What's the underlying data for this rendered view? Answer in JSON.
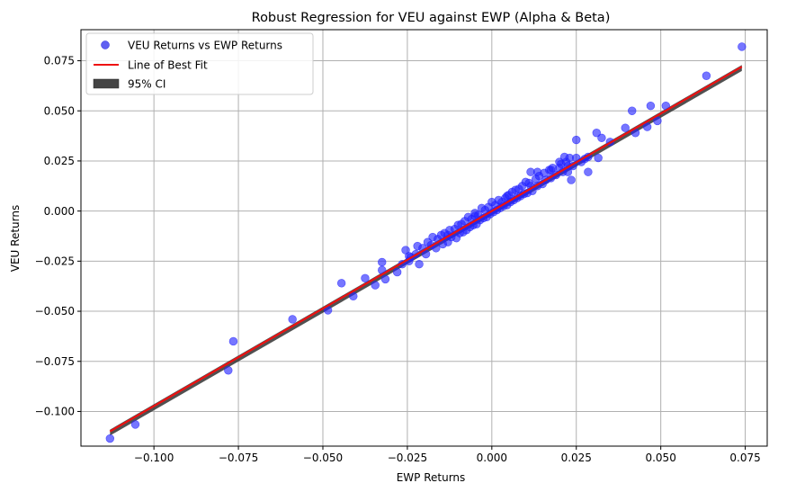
{
  "chart_data": {
    "type": "scatter",
    "title": "Robust Regression for VEU against EWP (Alpha & Beta)",
    "xlabel": "EWP Returns",
    "ylabel": "VEU Returns",
    "xlim": [
      -0.1216,
      0.0815
    ],
    "ylim": [
      -0.1173,
      0.0905
    ],
    "xticks": [
      -0.1,
      -0.075,
      -0.05,
      -0.025,
      0.0,
      0.025,
      0.05,
      0.075
    ],
    "yticks": [
      -0.1,
      -0.075,
      -0.05,
      -0.025,
      0.0,
      0.025,
      0.05,
      0.075
    ],
    "xtick_labels": [
      "−0.100",
      "−0.075",
      "−0.050",
      "−0.025",
      "0.000",
      "0.025",
      "0.050",
      "0.075"
    ],
    "ytick_labels": [
      "−0.100",
      "−0.075",
      "−0.050",
      "−0.025",
      "0.000",
      "0.025",
      "0.050",
      "0.075"
    ],
    "grid": true,
    "legend_position": "top-left",
    "legend": [
      {
        "label": "VEU Returns vs EWP Returns",
        "kind": "marker",
        "color": "#4444ee"
      },
      {
        "label": "Line of Best Fit",
        "kind": "line",
        "color": "#ee1111"
      },
      {
        "label": "95% CI",
        "kind": "patch",
        "color": "#444444"
      }
    ],
    "colors": {
      "points": "#2222ff",
      "fit_line": "#ee1111",
      "ci_band": "#333333",
      "grid": "#b0b0b0"
    },
    "fit": {
      "intercept": 0.0,
      "slope": 0.973,
      "x_range": [
        -0.113,
        0.074
      ],
      "ci_halfwidth": 0.0009
    },
    "series": [
      {
        "name": "VEU Returns vs EWP Returns",
        "points": [
          [
            -0.113,
            -0.1135
          ],
          [
            -0.1055,
            -0.1065
          ],
          [
            -0.078,
            -0.0795
          ],
          [
            -0.0765,
            -0.065
          ],
          [
            -0.059,
            -0.054
          ],
          [
            -0.0485,
            -0.0495
          ],
          [
            -0.0445,
            -0.036
          ],
          [
            -0.041,
            -0.0425
          ],
          [
            -0.0375,
            -0.0335
          ],
          [
            -0.0345,
            -0.037
          ],
          [
            -0.0325,
            -0.0255
          ],
          [
            -0.0325,
            -0.0295
          ],
          [
            -0.0315,
            -0.034
          ],
          [
            -0.028,
            -0.0305
          ],
          [
            -0.0265,
            -0.0265
          ],
          [
            -0.0255,
            -0.0195
          ],
          [
            -0.0245,
            -0.025
          ],
          [
            -0.024,
            -0.023
          ],
          [
            -0.0225,
            -0.0215
          ],
          [
            -0.0215,
            -0.0265
          ],
          [
            -0.0205,
            -0.0185
          ],
          [
            -0.0195,
            -0.0215
          ],
          [
            -0.019,
            -0.0155
          ],
          [
            -0.018,
            -0.017
          ],
          [
            -0.0175,
            -0.013
          ],
          [
            -0.0165,
            -0.0185
          ],
          [
            -0.016,
            -0.014
          ],
          [
            -0.015,
            -0.012
          ],
          [
            -0.0145,
            -0.0165
          ],
          [
            -0.014,
            -0.011
          ],
          [
            -0.013,
            -0.0155
          ],
          [
            -0.0125,
            -0.0095
          ],
          [
            -0.012,
            -0.013
          ],
          [
            -0.011,
            -0.009
          ],
          [
            -0.0105,
            -0.0135
          ],
          [
            -0.01,
            -0.007
          ],
          [
            -0.0095,
            -0.011
          ],
          [
            -0.009,
            -0.0065
          ],
          [
            -0.0085,
            -0.0105
          ],
          [
            -0.008,
            -0.005
          ],
          [
            -0.0075,
            -0.0095
          ],
          [
            -0.007,
            -0.003
          ],
          [
            -0.0065,
            -0.008
          ],
          [
            -0.006,
            -0.004
          ],
          [
            -0.0055,
            -0.007
          ],
          [
            -0.005,
            -0.001
          ],
          [
            -0.0045,
            -0.0065
          ],
          [
            -0.004,
            -0.002
          ],
          [
            -0.0035,
            -0.0045
          ],
          [
            -0.003,
            0.0015
          ],
          [
            -0.0025,
            -0.0035
          ],
          [
            -0.002,
            0.0005
          ],
          [
            -0.0015,
            -0.003
          ],
          [
            -0.001,
            0.002
          ],
          [
            -0.0005,
            -0.0015
          ],
          [
            0.0,
            0.0045
          ],
          [
            0.0005,
            -0.0005
          ],
          [
            0.001,
            0.003
          ],
          [
            0.0015,
            0.0005
          ],
          [
            0.002,
            0.0055
          ],
          [
            0.0025,
            0.0015
          ],
          [
            0.003,
            0.0045
          ],
          [
            0.0035,
            0.0025
          ],
          [
            0.004,
            0.0065
          ],
          [
            0.0045,
            0.003
          ],
          [
            0.005,
            0.008
          ],
          [
            0.0055,
            0.0045
          ],
          [
            0.006,
            0.0095
          ],
          [
            0.0065,
            0.0055
          ],
          [
            0.007,
            0.0105
          ],
          [
            0.0075,
            0.0065
          ],
          [
            0.008,
            0.011
          ],
          [
            0.0085,
            0.0075
          ],
          [
            0.009,
            0.0125
          ],
          [
            0.0095,
            0.0085
          ],
          [
            0.01,
            0.0145
          ],
          [
            0.0105,
            0.009
          ],
          [
            0.011,
            0.014
          ],
          [
            0.0115,
            0.0195
          ],
          [
            0.012,
            0.01
          ],
          [
            0.013,
            0.016
          ],
          [
            0.0135,
            0.0125
          ],
          [
            0.014,
            0.0175
          ],
          [
            0.015,
            0.0135
          ],
          [
            0.0155,
            0.019
          ],
          [
            0.016,
            0.0155
          ],
          [
            0.017,
            0.0205
          ],
          [
            0.0175,
            0.0165
          ],
          [
            0.018,
            0.0215
          ],
          [
            0.019,
            0.018
          ],
          [
            0.02,
            0.0215
          ],
          [
            0.0205,
            0.0235
          ],
          [
            0.021,
            0.0195
          ],
          [
            0.0215,
            0.027
          ],
          [
            0.022,
            0.0245
          ],
          [
            0.0225,
            0.0225
          ],
          [
            0.023,
            0.0265
          ],
          [
            0.0235,
            0.0155
          ],
          [
            0.024,
            0.0225
          ],
          [
            0.025,
            0.0265
          ],
          [
            0.025,
            0.0355
          ],
          [
            0.0265,
            0.0245
          ],
          [
            0.0275,
            0.026
          ],
          [
            0.0285,
            0.0195
          ],
          [
            0.0285,
            0.027
          ],
          [
            0.0315,
            0.0265
          ],
          [
            0.031,
            0.039
          ],
          [
            0.0325,
            0.0365
          ],
          [
            0.035,
            0.0345
          ],
          [
            0.0395,
            0.0415
          ],
          [
            0.0415,
            0.05
          ],
          [
            0.0425,
            0.039
          ],
          [
            0.046,
            0.042
          ],
          [
            0.047,
            0.0525
          ],
          [
            0.049,
            0.045
          ],
          [
            0.0515,
            0.0525
          ],
          [
            0.0635,
            0.0675
          ],
          [
            0.074,
            0.082
          ],
          [
            0.02,
            0.0245
          ],
          [
            0.0135,
            0.0195
          ],
          [
            -0.022,
            -0.0175
          ],
          [
            -0.0245,
            -0.0225
          ],
          [
            -0.013,
            -0.012
          ],
          [
            -0.005,
            -0.0025
          ],
          [
            0.0045,
            0.0075
          ],
          [
            0.0115,
            0.0125
          ],
          [
            0.0175,
            0.0205
          ],
          [
            0.0225,
            0.0195
          ]
        ]
      }
    ]
  }
}
